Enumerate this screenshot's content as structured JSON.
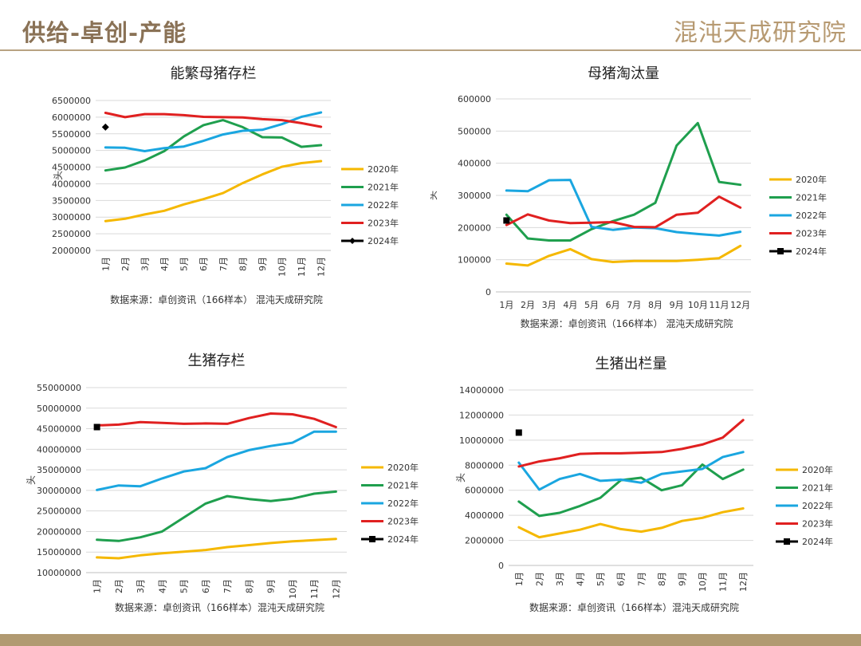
{
  "header": {
    "title": "供给-卓创-产能",
    "brand": "混沌天成研究院"
  },
  "colors": {
    "accent": "#8a7256",
    "footer": "#b19a71",
    "series_2020": "#f5b800",
    "series_2021": "#1f9f4e",
    "series_2022": "#1aa6e0",
    "series_2023": "#e02020",
    "series_2024": "#000000"
  },
  "chart_data": [
    {
      "type": "line",
      "title": "能繁母猪存栏",
      "ylabel": "头",
      "source": "数据来源：卓创资讯（166样本） 混沌天成研究院",
      "x": [
        "1月",
        "2月",
        "3月",
        "4月",
        "5月",
        "6月",
        "7月",
        "8月",
        "9月",
        "10月",
        "11月",
        "12月"
      ],
      "ylim": [
        2000000,
        6500000
      ],
      "yticks": [
        "2000000",
        "2500000",
        "3000000",
        "3500000",
        "4000000",
        "4500000",
        "5000000",
        "5500000",
        "6000000",
        "6500000"
      ],
      "legend_position": "right",
      "x_label_rotated": true,
      "series": [
        {
          "name": "2020年",
          "color": "#f5b800",
          "values": [
            2880000,
            2950000,
            3080000,
            3190000,
            3380000,
            3540000,
            3720000,
            4020000,
            4280000,
            4510000,
            4620000,
            4680000
          ]
        },
        {
          "name": "2021年",
          "color": "#1f9f4e",
          "values": [
            4400000,
            4490000,
            4700000,
            4980000,
            5420000,
            5760000,
            5910000,
            5700000,
            5400000,
            5390000,
            5110000,
            5160000
          ]
        },
        {
          "name": "2022年",
          "color": "#1aa6e0",
          "values": [
            5090000,
            5080000,
            4980000,
            5070000,
            5120000,
            5290000,
            5480000,
            5590000,
            5620000,
            5790000,
            6010000,
            6140000
          ]
        },
        {
          "name": "2023年",
          "color": "#e02020",
          "values": [
            6130000,
            6000000,
            6090000,
            6090000,
            6060000,
            6010000,
            6000000,
            5990000,
            5940000,
            5910000,
            5820000,
            5710000
          ]
        },
        {
          "name": "2024年",
          "color": "#000000",
          "marker": "diamond",
          "values": [
            5700000,
            null,
            null,
            null,
            null,
            null,
            null,
            null,
            null,
            null,
            null,
            null
          ]
        }
      ]
    },
    {
      "type": "line",
      "title": "母猪淘汰量",
      "ylabel": "头",
      "source": "数据来源：卓创资讯（166样本） 混沌天成研究院",
      "x": [
        "1月",
        "2月",
        "3月",
        "4月",
        "5月",
        "6月",
        "7月",
        "8月",
        "9月",
        "10月",
        "11月",
        "12月"
      ],
      "ylim": [
        0,
        600000
      ],
      "yticks": [
        "0",
        "100000",
        "200000",
        "300000",
        "400000",
        "500000",
        "600000"
      ],
      "legend_position": "right",
      "x_label_rotated": false,
      "series": [
        {
          "name": "2020年",
          "color": "#f5b800",
          "values": [
            88000,
            82000,
            112000,
            133000,
            102000,
            93000,
            96000,
            96000,
            96000,
            100000,
            105000,
            143000
          ]
        },
        {
          "name": "2021年",
          "color": "#1f9f4e",
          "values": [
            240000,
            166000,
            160000,
            160000,
            195000,
            220000,
            240000,
            277000,
            455000,
            525000,
            342000,
            333000
          ]
        },
        {
          "name": "2022年",
          "color": "#1aa6e0",
          "values": [
            315000,
            313000,
            347000,
            348000,
            202000,
            193000,
            200000,
            198000,
            186000,
            180000,
            175000,
            187000
          ]
        },
        {
          "name": "2023年",
          "color": "#e02020",
          "values": [
            208000,
            241000,
            222000,
            214000,
            215000,
            217000,
            202000,
            201000,
            240000,
            246000,
            296000,
            262000
          ]
        },
        {
          "name": "2024年",
          "color": "#000000",
          "marker": "square",
          "values": [
            222000,
            null,
            null,
            null,
            null,
            null,
            null,
            null,
            null,
            null,
            null,
            null
          ]
        }
      ]
    },
    {
      "type": "line",
      "title": "生猪存栏",
      "ylabel": "头",
      "source": "数据来源：卓创资讯（166样本）混沌天成研究院",
      "x": [
        "1月",
        "2月",
        "3月",
        "4月",
        "5月",
        "6月",
        "7月",
        "8月",
        "9月",
        "10月",
        "11月",
        "12月"
      ],
      "ylim": [
        10000000,
        55000000
      ],
      "yticks": [
        "10000000",
        "15000000",
        "20000000",
        "25000000",
        "30000000",
        "35000000",
        "40000000",
        "45000000",
        "50000000",
        "55000000"
      ],
      "legend_position": "right",
      "x_label_rotated": true,
      "series": [
        {
          "name": "2020年",
          "color": "#f5b800",
          "values": [
            13700000,
            13500000,
            14200000,
            14700000,
            15100000,
            15500000,
            16200000,
            16700000,
            17200000,
            17600000,
            17900000,
            18200000
          ]
        },
        {
          "name": "2021年",
          "color": "#1f9f4e",
          "values": [
            18000000,
            17700000,
            18600000,
            20000000,
            23400000,
            26800000,
            28600000,
            27900000,
            27400000,
            28000000,
            29200000,
            29700000
          ]
        },
        {
          "name": "2022年",
          "color": "#1aa6e0",
          "values": [
            30100000,
            31200000,
            31000000,
            32900000,
            34600000,
            35400000,
            38100000,
            39800000,
            40800000,
            41600000,
            44300000,
            44300000
          ]
        },
        {
          "name": "2023年",
          "color": "#e02020",
          "values": [
            45800000,
            46000000,
            46600000,
            46400000,
            46200000,
            46300000,
            46200000,
            47600000,
            48700000,
            48500000,
            47400000,
            45400000
          ]
        },
        {
          "name": "2024年",
          "color": "#000000",
          "marker": "square",
          "values": [
            45400000,
            null,
            null,
            null,
            null,
            null,
            null,
            null,
            null,
            null,
            null,
            null
          ]
        }
      ]
    },
    {
      "type": "line",
      "title": "生猪出栏量",
      "ylabel": "头",
      "source": "数据来源：卓创资讯（166样本）混沌天成研究院",
      "x": [
        "1月",
        "2月",
        "3月",
        "4月",
        "5月",
        "6月",
        "7月",
        "8月",
        "9月",
        "10月",
        "11月",
        "12月"
      ],
      "ylim": [
        0,
        14000000
      ],
      "yticks": [
        "0",
        "2000000",
        "4000000",
        "6000000",
        "8000000",
        "10000000",
        "12000000",
        "14000000"
      ],
      "legend_position": "right",
      "x_label_rotated": true,
      "series": [
        {
          "name": "2020年",
          "color": "#f5b800",
          "values": [
            3050000,
            2250000,
            2550000,
            2850000,
            3300000,
            2900000,
            2700000,
            3000000,
            3550000,
            3800000,
            4250000,
            4550000
          ]
        },
        {
          "name": "2021年",
          "color": "#1f9f4e",
          "values": [
            5100000,
            3950000,
            4200000,
            4750000,
            5400000,
            6800000,
            7000000,
            6000000,
            6400000,
            8050000,
            6900000,
            7650000
          ]
        },
        {
          "name": "2022年",
          "color": "#1aa6e0",
          "values": [
            8200000,
            6050000,
            6900000,
            7300000,
            6750000,
            6850000,
            6600000,
            7300000,
            7500000,
            7700000,
            8650000,
            9050000
          ]
        },
        {
          "name": "2023年",
          "color": "#e02020",
          "values": [
            7900000,
            8300000,
            8550000,
            8900000,
            8950000,
            8950000,
            9000000,
            9050000,
            9300000,
            9650000,
            10200000,
            11600000
          ]
        },
        {
          "name": "2024年",
          "color": "#000000",
          "marker": "square",
          "values": [
            10600000,
            null,
            null,
            null,
            null,
            null,
            null,
            null,
            null,
            null,
            null,
            null
          ]
        }
      ]
    }
  ]
}
